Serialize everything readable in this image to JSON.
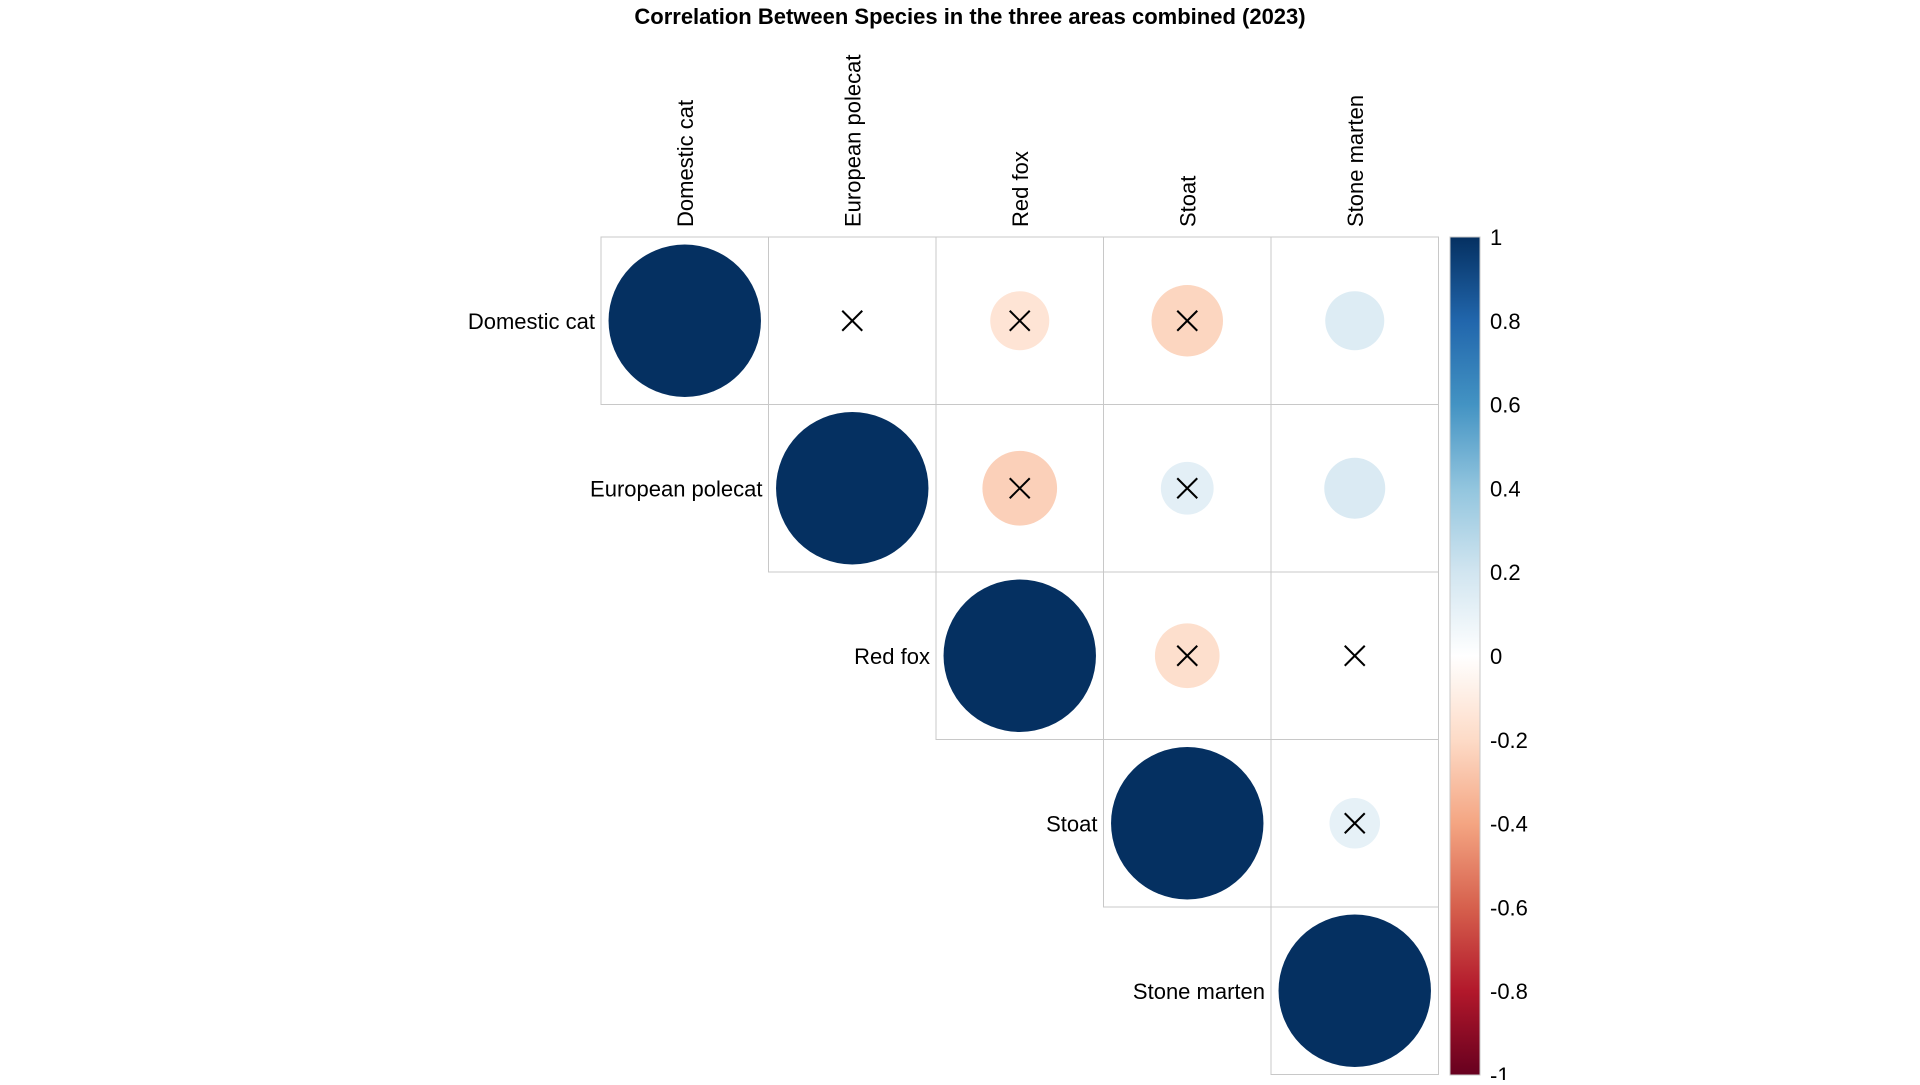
{
  "chart_data": {
    "type": "heatmap",
    "subtype": "correlation-matrix-circles-upper-triangle",
    "title": "Correlation Between Species in the three areas combined (2023)",
    "variables": [
      "Domestic cat",
      "European polecat",
      "Red fox",
      "Stoat",
      "Stone marten"
    ],
    "matrix": [
      [
        1.0,
        -0.01,
        -0.15,
        -0.22,
        0.15
      ],
      [
        null,
        1.0,
        -0.24,
        0.12,
        0.16
      ],
      [
        null,
        null,
        1.0,
        -0.18,
        0.0
      ],
      [
        null,
        null,
        null,
        1.0,
        0.11
      ],
      [
        null,
        null,
        null,
        null,
        1.0
      ]
    ],
    "insignificant": [
      [
        false,
        true,
        true,
        true,
        false
      ],
      [
        null,
        false,
        true,
        true,
        false
      ],
      [
        null,
        null,
        false,
        true,
        true
      ],
      [
        null,
        null,
        null,
        false,
        true
      ],
      [
        null,
        null,
        null,
        null,
        false
      ]
    ],
    "insignificant_marker": "cross",
    "colorbar": {
      "range": [
        -1,
        1
      ],
      "ticks": [
        "1",
        "0.8",
        "0.6",
        "0.4",
        "0.2",
        "0",
        "-0.2",
        "-0.4",
        "-0.6",
        "-0.8",
        "-1"
      ],
      "colors": [
        "#67001F",
        "#B2182B",
        "#D6604D",
        "#F4A582",
        "#FDDBC7",
        "#FFFFFF",
        "#D1E5F0",
        "#92C5DE",
        "#4393C3",
        "#2166AC",
        "#053061"
      ],
      "placement": "right"
    },
    "grid": true
  }
}
